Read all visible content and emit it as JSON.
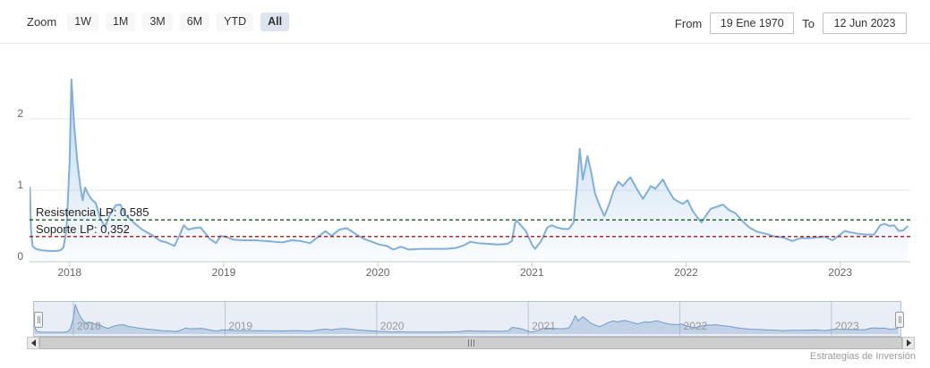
{
  "toolbar": {
    "zoom_label": "Zoom",
    "buttons": [
      "1W",
      "1M",
      "3M",
      "6M",
      "YTD",
      "All"
    ],
    "selected": "All",
    "from_label": "From",
    "from_value": "19 Ene 1970",
    "to_label": "To",
    "to_value": "12 Jun 2023"
  },
  "credit": "Estrategias de Inversión",
  "chart_data": {
    "type": "area",
    "title": "",
    "xlabel": "",
    "ylabel": "",
    "series_color": "#7fb0dc",
    "grid_color": "#e6e6e6",
    "axis_color": "#c6cbd4",
    "xlim": [
      2017.74,
      2023.455
    ],
    "ylim": [
      0,
      2.975
    ],
    "xticks": [
      2018,
      2019,
      2020,
      2021,
      2022,
      2023
    ],
    "yticks": [
      0,
      1,
      2
    ],
    "legend": "off",
    "annotations": [
      {
        "label": "Resistencia LP: 0,585",
        "value": 0.585,
        "color": "#1d5c1d"
      },
      {
        "label": "Soporte LP: 0,352",
        "value": 0.352,
        "color": "#a31515"
      }
    ],
    "x": [
      2017.742,
      2017.75,
      2017.76,
      2017.78,
      2017.82,
      2017.87,
      2017.91,
      2017.94,
      2017.96,
      2017.98,
      2018.0,
      2018.012,
      2018.03,
      2018.05,
      2018.07,
      2018.085,
      2018.1,
      2018.12,
      2018.14,
      2018.17,
      2018.2,
      2018.23,
      2018.26,
      2018.3,
      2018.33,
      2018.36,
      2018.42,
      2018.47,
      2018.53,
      2018.59,
      2018.63,
      2018.68,
      2018.72,
      2018.74,
      2018.77,
      2018.81,
      2018.85,
      2018.88,
      2018.91,
      2018.95,
      2018.98,
      2019.01,
      2019.06,
      2019.12,
      2019.2,
      2019.27,
      2019.33,
      2019.38,
      2019.44,
      2019.5,
      2019.56,
      2019.62,
      2019.66,
      2019.7,
      2019.75,
      2019.8,
      2019.86,
      2019.91,
      2019.96,
      2020.01,
      2020.06,
      2020.1,
      2020.15,
      2020.2,
      2020.28,
      2020.36,
      2020.44,
      2020.5,
      2020.56,
      2020.6,
      2020.65,
      2020.72,
      2020.78,
      2020.84,
      2020.87,
      2020.89,
      2020.9,
      2020.92,
      2020.96,
      2021.0,
      2021.02,
      2021.06,
      2021.1,
      2021.13,
      2021.16,
      2021.2,
      2021.24,
      2021.27,
      2021.29,
      2021.31,
      2021.33,
      2021.36,
      2021.38,
      2021.41,
      2021.44,
      2021.47,
      2021.5,
      2021.53,
      2021.56,
      2021.59,
      2021.62,
      2021.64,
      2021.68,
      2021.72,
      2021.75,
      2021.77,
      2021.8,
      2021.83,
      2021.85,
      2021.88,
      2021.92,
      2021.95,
      2021.98,
      2022.01,
      2022.04,
      2022.07,
      2022.1,
      2022.13,
      2022.16,
      2022.2,
      2022.24,
      2022.28,
      2022.32,
      2022.36,
      2022.41,
      2022.46,
      2022.52,
      2022.58,
      2022.63,
      2022.69,
      2022.74,
      2022.8,
      2022.85,
      2022.9,
      2022.95,
      2023.0,
      2023.03,
      2023.07,
      2023.12,
      2023.17,
      2023.22,
      2023.26,
      2023.29,
      2023.32,
      2023.35,
      2023.38,
      2023.41,
      2023.44
    ],
    "y": [
      1.05,
      0.45,
      0.22,
      0.18,
      0.16,
      0.15,
      0.15,
      0.16,
      0.2,
      0.45,
      1.4,
      2.55,
      1.9,
      1.4,
      1.05,
      0.86,
      1.04,
      0.95,
      0.88,
      0.82,
      0.6,
      0.49,
      0.65,
      0.79,
      0.8,
      0.66,
      0.54,
      0.45,
      0.38,
      0.29,
      0.27,
      0.22,
      0.4,
      0.51,
      0.45,
      0.47,
      0.48,
      0.4,
      0.32,
      0.26,
      0.36,
      0.35,
      0.31,
      0.3,
      0.3,
      0.29,
      0.28,
      0.27,
      0.3,
      0.29,
      0.26,
      0.36,
      0.43,
      0.36,
      0.45,
      0.47,
      0.38,
      0.32,
      0.28,
      0.24,
      0.22,
      0.17,
      0.21,
      0.17,
      0.18,
      0.18,
      0.18,
      0.19,
      0.23,
      0.28,
      0.26,
      0.25,
      0.24,
      0.25,
      0.29,
      0.54,
      0.58,
      0.53,
      0.43,
      0.24,
      0.18,
      0.29,
      0.48,
      0.51,
      0.48,
      0.46,
      0.46,
      0.55,
      1.0,
      1.58,
      1.15,
      1.48,
      1.3,
      0.95,
      0.78,
      0.64,
      0.8,
      1.0,
      1.12,
      1.06,
      1.14,
      1.18,
      1.02,
      0.88,
      0.98,
      1.06,
      1.02,
      1.1,
      1.15,
      1.02,
      0.88,
      0.84,
      0.81,
      0.86,
      0.72,
      0.63,
      0.55,
      0.65,
      0.74,
      0.77,
      0.8,
      0.72,
      0.68,
      0.58,
      0.48,
      0.42,
      0.39,
      0.35,
      0.34,
      0.29,
      0.33,
      0.33,
      0.34,
      0.35,
      0.3,
      0.38,
      0.43,
      0.41,
      0.39,
      0.38,
      0.38,
      0.51,
      0.53,
      0.5,
      0.51,
      0.43,
      0.44,
      0.5
    ],
    "navigator": {
      "range_selected": "all",
      "mask_color": "rgba(110,140,200,0.16)",
      "line_color": "#6f9dc9"
    }
  }
}
